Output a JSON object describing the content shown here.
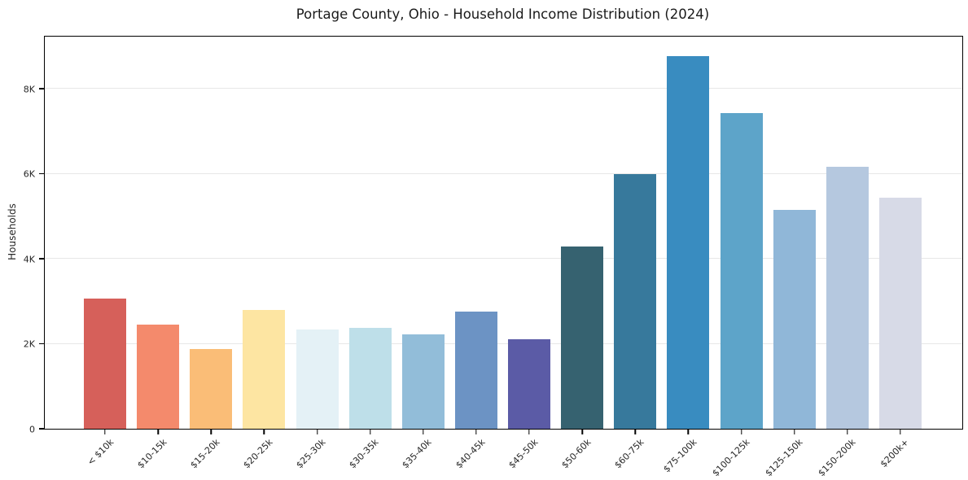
{
  "chart_data": {
    "type": "bar",
    "title": "Portage County, Ohio - Household Income Distribution (2024)",
    "xlabel": "",
    "ylabel": "Households",
    "categories": [
      "< $10k",
      "$10-15k",
      "$15-20k",
      "$20-25k",
      "$25-30k",
      "$30-35k",
      "$35-40k",
      "$40-45k",
      "$45-50k",
      "$50-60k",
      "$60-75k",
      "$75-100k",
      "$100-125k",
      "$125-150k",
      "$150-200k",
      "$200k+"
    ],
    "values": [
      3060,
      2450,
      1880,
      2790,
      2330,
      2370,
      2220,
      2760,
      2110,
      4290,
      6000,
      8760,
      7420,
      5150,
      6160,
      5430
    ],
    "bar_colors": [
      "#d6605a",
      "#f48a6c",
      "#fabd77",
      "#fde5a2",
      "#e4f1f6",
      "#bedfe9",
      "#92bdd9",
      "#6c93c4",
      "#5b5ba6",
      "#366270",
      "#37799c",
      "#398cc0",
      "#5da4c9",
      "#90b7d8",
      "#b5c8df",
      "#d7dae7"
    ],
    "ylim": [
      0,
      9225
    ],
    "yticks": [
      {
        "value": 0,
        "label": "0"
      },
      {
        "value": 2000,
        "label": "2K"
      },
      {
        "value": 4000,
        "label": "4K"
      },
      {
        "value": 6000,
        "label": "6K"
      },
      {
        "value": 8000,
        "label": "8K"
      }
    ],
    "grid": "horizontal",
    "gridline_color": "#e7e7e7",
    "legend": "none",
    "x_tick_rotation_deg": 45
  }
}
